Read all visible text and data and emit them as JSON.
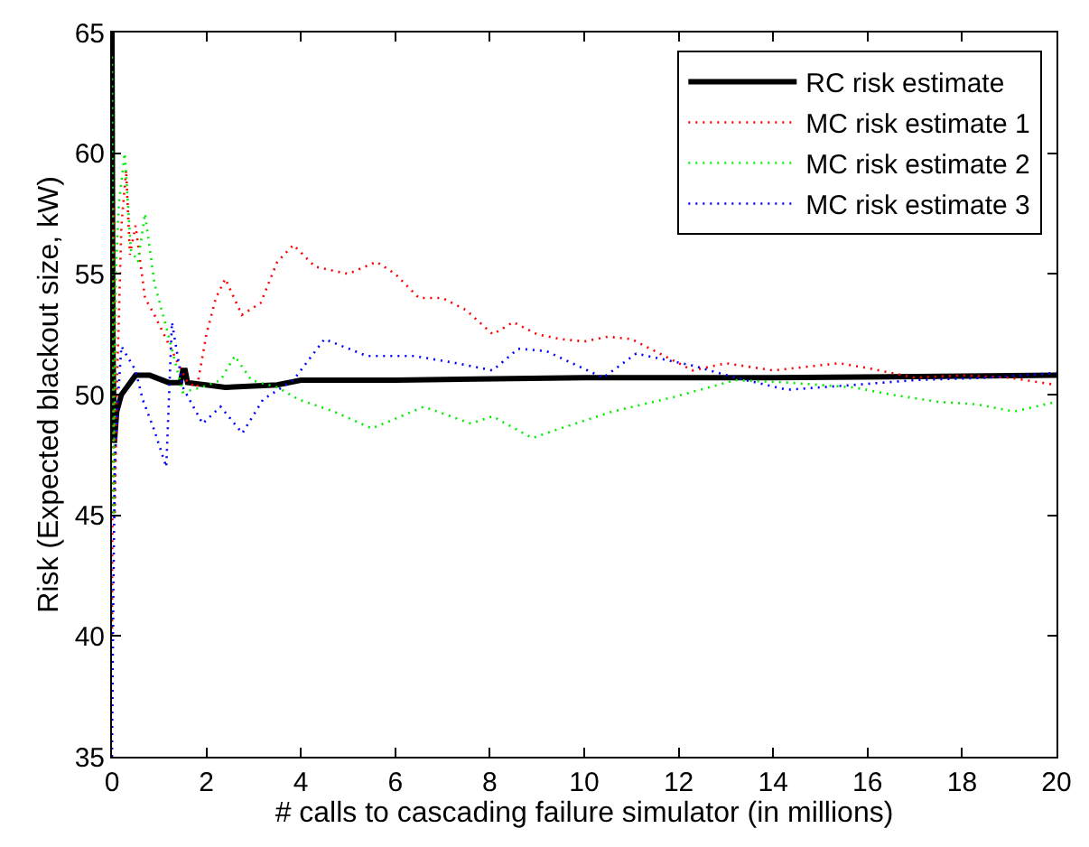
{
  "chart_data": {
    "type": "line",
    "xlabel": "# calls to cascading failure simulator (in millions)",
    "ylabel": "Risk (Expected blackout size, kW)",
    "xlim": [
      0,
      20
    ],
    "xticks": [
      0,
      2,
      4,
      6,
      8,
      10,
      12,
      14,
      16,
      18,
      20
    ],
    "ylim": [
      35,
      65
    ],
    "yticks": [
      35,
      40,
      45,
      50,
      55,
      60,
      65
    ],
    "legend": "top right",
    "marker": "none",
    "series": [
      {
        "name": "RC risk estimate",
        "color": "#000000",
        "line_style": "solid",
        "x": [
          0,
          0.02,
          0.05,
          0.1,
          0.2,
          0.5,
          0.8,
          1.2,
          1.45,
          1.5,
          1.55,
          1.6,
          2.4,
          3.5,
          4,
          6,
          10,
          14,
          20
        ],
        "values": [
          65,
          52,
          48,
          49.3,
          50,
          50.8,
          50.8,
          50.5,
          50.5,
          51,
          51,
          50.5,
          50.3,
          50.4,
          50.6,
          50.6,
          50.7,
          50.7,
          50.8
        ]
      },
      {
        "name": "MC risk estimate 1",
        "color": "#ff0000",
        "line_style": "dotted",
        "x": [
          0,
          0.03,
          0.06,
          0.1,
          0.2,
          0.3,
          0.38,
          0.5,
          0.7,
          0.9,
          1.1,
          1.4,
          1.6,
          1.8,
          2.0,
          2.2,
          2.4,
          2.75,
          3.15,
          3.5,
          3.84,
          4.3,
          5.0,
          5.6,
          6.0,
          6.5,
          7.0,
          7.5,
          8.06,
          8.5,
          9.0,
          9.5,
          10.0,
          10.5,
          11.0,
          11.5,
          12.3,
          13.0,
          14.0,
          15.4,
          16.0,
          17.0,
          18.0,
          19.0,
          20.0
        ],
        "values": [
          40,
          58,
          45,
          50,
          57,
          59.3,
          55.8,
          57,
          54,
          53.3,
          52.5,
          51.3,
          50.5,
          50.3,
          52.5,
          54,
          54.8,
          53.3,
          53.8,
          55.5,
          56.2,
          55.3,
          55,
          55.5,
          55,
          54,
          54,
          53.5,
          52.5,
          53,
          52.5,
          52.3,
          52.2,
          52.4,
          52.3,
          51.8,
          51,
          51.3,
          51,
          51.3,
          51.1,
          50.7,
          50.8,
          50.7,
          50.4
        ]
      },
      {
        "name": "MC risk estimate 2",
        "color": "#00ee00",
        "line_style": "dotted",
        "x": [
          0,
          0.04,
          0.08,
          0.15,
          0.27,
          0.4,
          0.55,
          0.7,
          0.9,
          1.15,
          1.5,
          1.9,
          2.3,
          2.6,
          2.95,
          3.5,
          3.95,
          4.7,
          5.5,
          6.0,
          6.6,
          7.6,
          8.06,
          8.9,
          9.5,
          10.6,
          11.9,
          13.2,
          14.3,
          15.7,
          16.5,
          17.5,
          18.3,
          19.1,
          20.0
        ],
        "values": [
          64,
          45,
          55,
          58,
          60,
          56,
          55.5,
          57.5,
          54.6,
          52.8,
          50.1,
          50.3,
          50.6,
          51.6,
          50.6,
          50.3,
          49.8,
          49.3,
          48.6,
          49.0,
          49.5,
          48.8,
          49.1,
          48.2,
          48.6,
          49.3,
          49.9,
          50.6,
          50.5,
          50.3,
          50.0,
          49.7,
          49.6,
          49.3,
          49.7
        ]
      },
      {
        "name": "MC risk estimate 3",
        "color": "#0000ff",
        "line_style": "dotted",
        "x": [
          0,
          0.03,
          0.06,
          0.1,
          0.2,
          0.35,
          0.5,
          0.65,
          0.9,
          1.15,
          1.27,
          1.5,
          1.92,
          2.3,
          2.76,
          3.2,
          3.84,
          4.5,
          5.4,
          6.4,
          7.3,
          8.06,
          8.6,
          9.2,
          10.4,
          11.1,
          12.3,
          13.2,
          14.3,
          15.7,
          17.0,
          18.5,
          20.0
        ],
        "values": [
          35,
          42,
          47,
          49,
          52,
          51.5,
          51,
          49.8,
          48.5,
          47,
          53,
          50.3,
          48.8,
          49.5,
          48.4,
          49.8,
          50.6,
          52.3,
          51.6,
          51.6,
          51.3,
          51.0,
          51.9,
          51.8,
          50.7,
          51.7,
          51.2,
          50.7,
          50.2,
          50.4,
          50.6,
          50.7,
          50.9
        ]
      }
    ]
  }
}
